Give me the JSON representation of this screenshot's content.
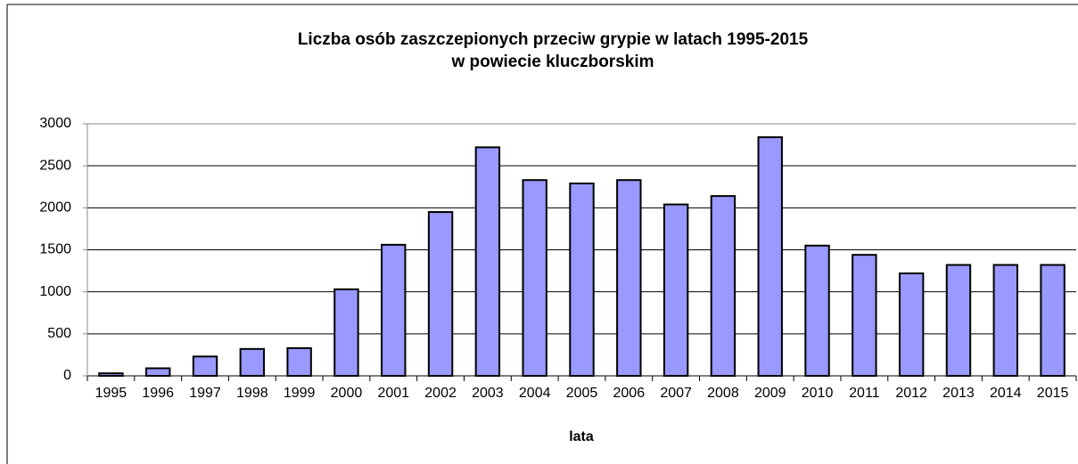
{
  "chart_data": {
    "type": "bar",
    "title": [
      "Liczba osób zaszczepionych przeciw grypie w latach 1995-2015",
      "w powiecie kluczborskim"
    ],
    "x_label": "lata",
    "categories": [
      "1995",
      "1996",
      "1997",
      "1998",
      "1999",
      "2000",
      "2001",
      "2002",
      "2003",
      "2004",
      "2005",
      "2006",
      "2007",
      "2008",
      "2009",
      "2010",
      "2011",
      "2012",
      "2013",
      "2014",
      "2015"
    ],
    "values": [
      30,
      90,
      230,
      320,
      330,
      1030,
      1560,
      1950,
      2720,
      2330,
      2290,
      2330,
      2040,
      2140,
      2840,
      1550,
      1440,
      1220,
      1320,
      1320,
      1320
    ],
    "color": "#9999ff",
    "ylim": [
      0,
      3000
    ],
    "yticks": [
      0,
      500,
      1000,
      1500,
      2000,
      2500,
      3000
    ],
    "grid": true
  }
}
